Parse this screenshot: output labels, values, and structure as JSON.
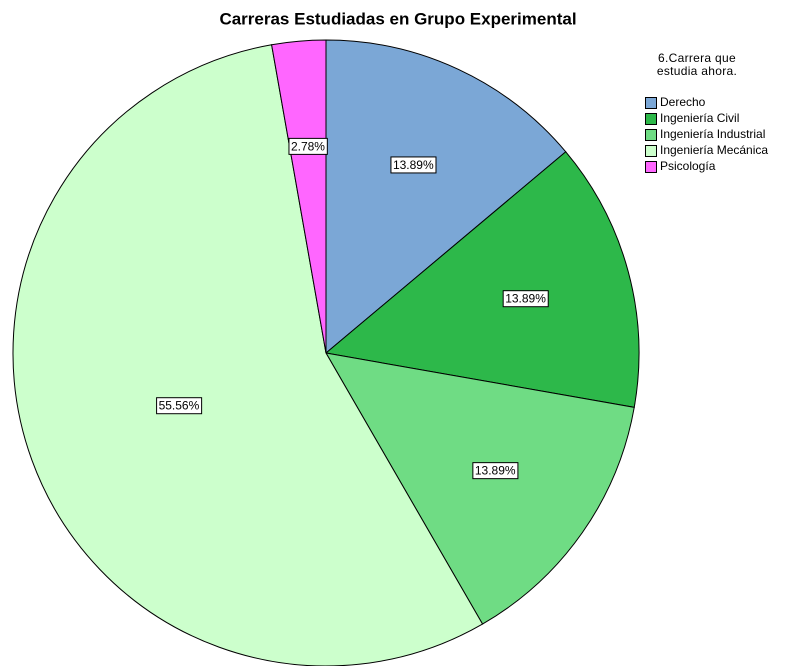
{
  "chart_data": {
    "type": "pie",
    "title": "Carreras Estudiadas en Grupo Experimental",
    "legend_title": "6.Carrera que estudia ahora.",
    "legend": "right",
    "categories": [
      "Derecho",
      "Ingeniería Civil",
      "Ingeniería Industrial",
      "Ingeniería Mecánica",
      "Psicología"
    ],
    "values": [
      13.89,
      13.89,
      13.89,
      55.56,
      2.78
    ],
    "value_labels": [
      "13.89%",
      "13.89%",
      "13.89%",
      "55.56%",
      "2.78%"
    ],
    "colors": [
      "#7ba7d6",
      "#2db84a",
      "#6fdc84",
      "#ccffcc",
      "#ff66ff"
    ]
  }
}
